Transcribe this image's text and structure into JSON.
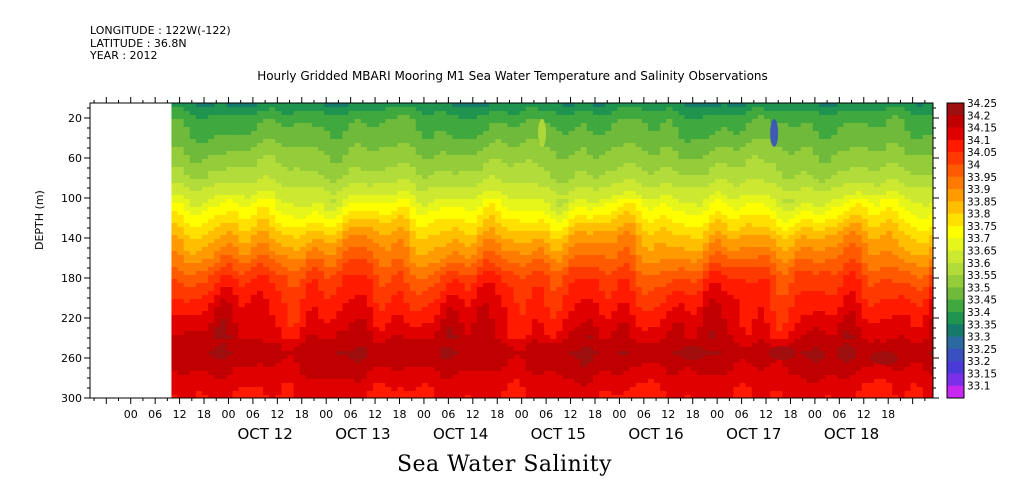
{
  "header": {
    "longitude": "LONGITUDE : 122W(-122)",
    "latitude": "LATITUDE : 36.8N",
    "year": "YEAR : 2012"
  },
  "title": "Hourly Gridded MBARI Mooring M1 Sea Water Temperature and Salinity Observations",
  "variable_label": "Sea Water Salinity",
  "chart_data": {
    "type": "heatmap",
    "title": "Hourly Gridded MBARI Mooring M1 Sea Water Temperature and Salinity Observations",
    "xlabel": "",
    "ylabel": "DEPTH (m)",
    "x_unit": "hours since OCT 11 2012 00:00",
    "xlim": [
      -10,
      197
    ],
    "data_start_hour": 10,
    "ylim": [
      300,
      5
    ],
    "y_ticks": [
      20,
      60,
      100,
      140,
      180,
      220,
      260,
      300
    ],
    "x_hour_ticks": [
      "00",
      "06",
      "12",
      "18",
      "00",
      "06",
      "12",
      "18",
      "00",
      "06",
      "12",
      "18",
      "00",
      "06",
      "12",
      "18",
      "00",
      "06",
      "12",
      "18",
      "00",
      "06",
      "12",
      "18",
      "00",
      "06",
      "12",
      "18",
      "00",
      "06",
      "12",
      "18"
    ],
    "x_date_labels": [
      "OCT 12",
      "OCT 13",
      "OCT 14",
      "OCT 15",
      "OCT 16",
      "OCT 17",
      "OCT 18"
    ],
    "colorbar_levels": [
      "34.25",
      "34.2",
      "34.15",
      "34.1",
      "34.05",
      "34",
      "33.95",
      "33.9",
      "33.85",
      "33.8",
      "33.75",
      "33.7",
      "33.65",
      "33.6",
      "33.55",
      "33.5",
      "33.45",
      "33.4",
      "33.35",
      "33.3",
      "33.25",
      "33.2",
      "33.15",
      "33.1"
    ],
    "colorbar_colors": [
      "#9e1010",
      "#c00000",
      "#e00000",
      "#ff1a00",
      "#ff3a00",
      "#ff5a00",
      "#ff7a00",
      "#ff9a00",
      "#ffbf00",
      "#ffe000",
      "#ffff00",
      "#e6f51a",
      "#cde830",
      "#b2dc3a",
      "#94cc3a",
      "#6fba3a",
      "#3fa83f",
      "#1f944f",
      "#167a6a",
      "#2a6aa0",
      "#3a50c0",
      "#4a3ad8",
      "#7a30e8",
      "#c828f0"
    ],
    "profile": [
      {
        "depth": 5,
        "salinity": 33.35
      },
      {
        "depth": 20,
        "salinity": 33.43
      },
      {
        "depth": 40,
        "salinity": 33.47
      },
      {
        "depth": 60,
        "salinity": 33.52
      },
      {
        "depth": 80,
        "salinity": 33.57
      },
      {
        "depth": 100,
        "salinity": 33.65
      },
      {
        "depth": 120,
        "salinity": 33.75
      },
      {
        "depth": 140,
        "salinity": 33.85
      },
      {
        "depth": 160,
        "salinity": 33.93
      },
      {
        "depth": 180,
        "salinity": 34.02
      },
      {
        "depth": 200,
        "salinity": 34.07
      },
      {
        "depth": 220,
        "salinity": 34.11
      },
      {
        "depth": 240,
        "salinity": 34.15
      },
      {
        "depth": 255,
        "salinity": 34.19
      },
      {
        "depth": 270,
        "salinity": 34.16
      },
      {
        "depth": 285,
        "salinity": 34.12
      },
      {
        "depth": 300,
        "salinity": 34.1
      }
    ],
    "anomalies": [
      {
        "hour": 101,
        "depth": 35,
        "salinity": 33.6
      },
      {
        "hour": 158,
        "depth": 35,
        "salinity": 33.25
      },
      {
        "hour": 160,
        "depth": 255,
        "salinity": 34.22
      },
      {
        "hour": 185,
        "depth": 260,
        "salinity": 34.22
      },
      {
        "hour": 138,
        "depth": 255,
        "salinity": 34.22
      }
    ]
  }
}
